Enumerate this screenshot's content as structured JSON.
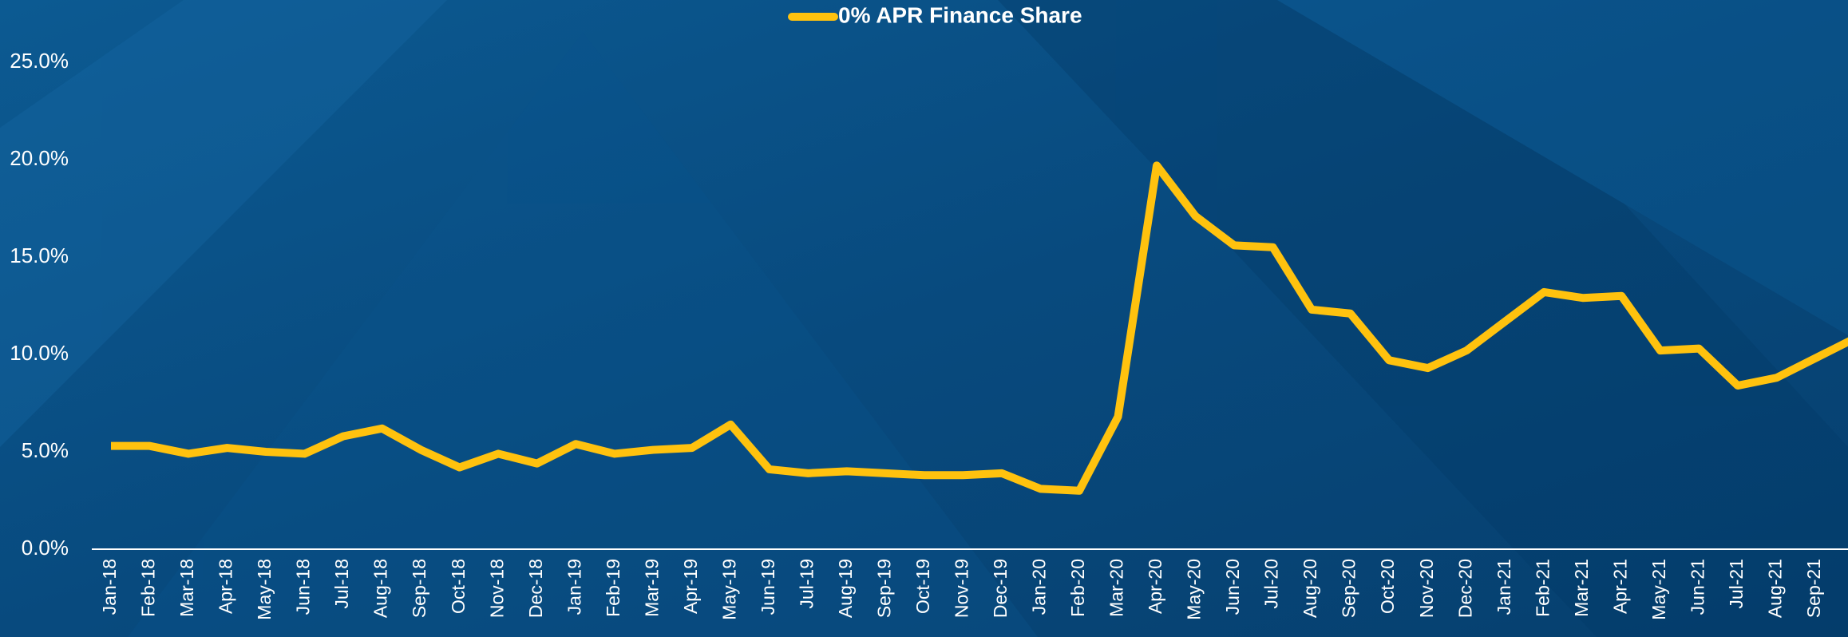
{
  "chart_data": {
    "type": "line",
    "categories": [
      "Jan-18",
      "Feb-18",
      "Mar-18",
      "Apr-18",
      "May-18",
      "Jun-18",
      "Jul-18",
      "Aug-18",
      "Sep-18",
      "Oct-18",
      "Nov-18",
      "Dec-18",
      "Jan-19",
      "Feb-19",
      "Mar-19",
      "Apr-19",
      "May-19",
      "Jun-19",
      "Jul-19",
      "Aug-19",
      "Sep-19",
      "Oct-19",
      "Nov-19",
      "Dec-19",
      "Jan-20",
      "Feb-20",
      "Mar-20",
      "Apr-20",
      "May-20",
      "Jun-20",
      "Jul-20",
      "Aug-20",
      "Sep-20",
      "Oct-20",
      "Nov-20",
      "Dec-20",
      "Jan-21",
      "Feb-21",
      "Mar-21",
      "Apr-21",
      "May-21",
      "Jun-21",
      "Jul-21",
      "Aug-21",
      "Sep-21",
      null
    ],
    "series": [
      {
        "name": "0% APR Finance Share",
        "color": "#FFC20E",
        "values": [
          5.3,
          5.3,
          4.9,
          5.2,
          5.0,
          4.9,
          5.8,
          6.2,
          5.1,
          4.2,
          4.9,
          4.4,
          5.4,
          4.9,
          5.1,
          5.2,
          6.4,
          4.1,
          3.9,
          4.0,
          3.9,
          3.8,
          3.8,
          3.9,
          3.1,
          3.0,
          6.8,
          19.7,
          17.1,
          15.6,
          15.5,
          12.3,
          12.1,
          9.7,
          9.3,
          10.2,
          11.7,
          13.2,
          12.9,
          13.0,
          10.2,
          10.3,
          8.4,
          8.8,
          9.8,
          10.8
        ]
      }
    ],
    "ylim": [
      0,
      25
    ],
    "yticks": [
      {
        "value": 0,
        "label": "0.0%"
      },
      {
        "value": 5,
        "label": "5.0%"
      },
      {
        "value": 10,
        "label": "10.0%"
      },
      {
        "value": 15,
        "label": "15.0%"
      },
      {
        "value": 20,
        "label": "20.0%"
      },
      {
        "value": 25,
        "label": "25.0%"
      }
    ],
    "grid": false,
    "legend": "top"
  }
}
